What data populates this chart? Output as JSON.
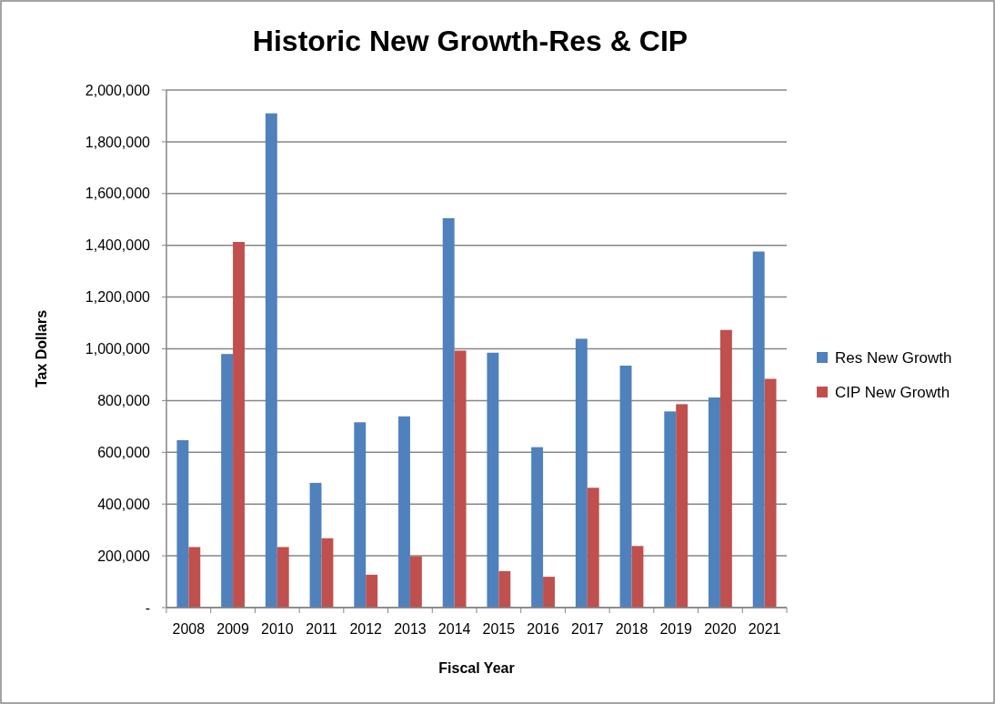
{
  "chart_data": {
    "type": "bar",
    "title": "Historic New Growth-Res & CIP",
    "xlabel": "Fiscal Year",
    "ylabel": "Tax Dollars",
    "categories": [
      "2008",
      "2009",
      "2010",
      "2011",
      "2012",
      "2013",
      "2014",
      "2015",
      "2016",
      "2017",
      "2018",
      "2019",
      "2020",
      "2021"
    ],
    "series": [
      {
        "name": "Res New Growth",
        "color": "#4f81bd",
        "values": [
          647000,
          980000,
          1910000,
          482000,
          716000,
          739000,
          1505000,
          985000,
          620000,
          1039000,
          935000,
          758000,
          812000,
          1376000
        ]
      },
      {
        "name": "CIP New Growth",
        "color": "#c0504d",
        "values": [
          234000,
          1413000,
          234000,
          268000,
          127000,
          198000,
          993000,
          141000,
          119000,
          463000,
          238000,
          786000,
          1073000,
          884000
        ]
      }
    ],
    "ylim": [
      0,
      2000000
    ],
    "yticks": [
      {
        "value": 0,
        "label": "-"
      },
      {
        "value": 200000,
        "label": "200,000"
      },
      {
        "value": 400000,
        "label": "400,000"
      },
      {
        "value": 600000,
        "label": "600,000"
      },
      {
        "value": 800000,
        "label": "800,000"
      },
      {
        "value": 1000000,
        "label": "1,000,000"
      },
      {
        "value": 1200000,
        "label": "1,200,000"
      },
      {
        "value": 1400000,
        "label": "1,400,000"
      },
      {
        "value": 1600000,
        "label": "1,600,000"
      },
      {
        "value": 1800000,
        "label": "1,800,000"
      },
      {
        "value": 2000000,
        "label": "2,000,000"
      }
    ],
    "grid": "y",
    "legend": "right"
  }
}
